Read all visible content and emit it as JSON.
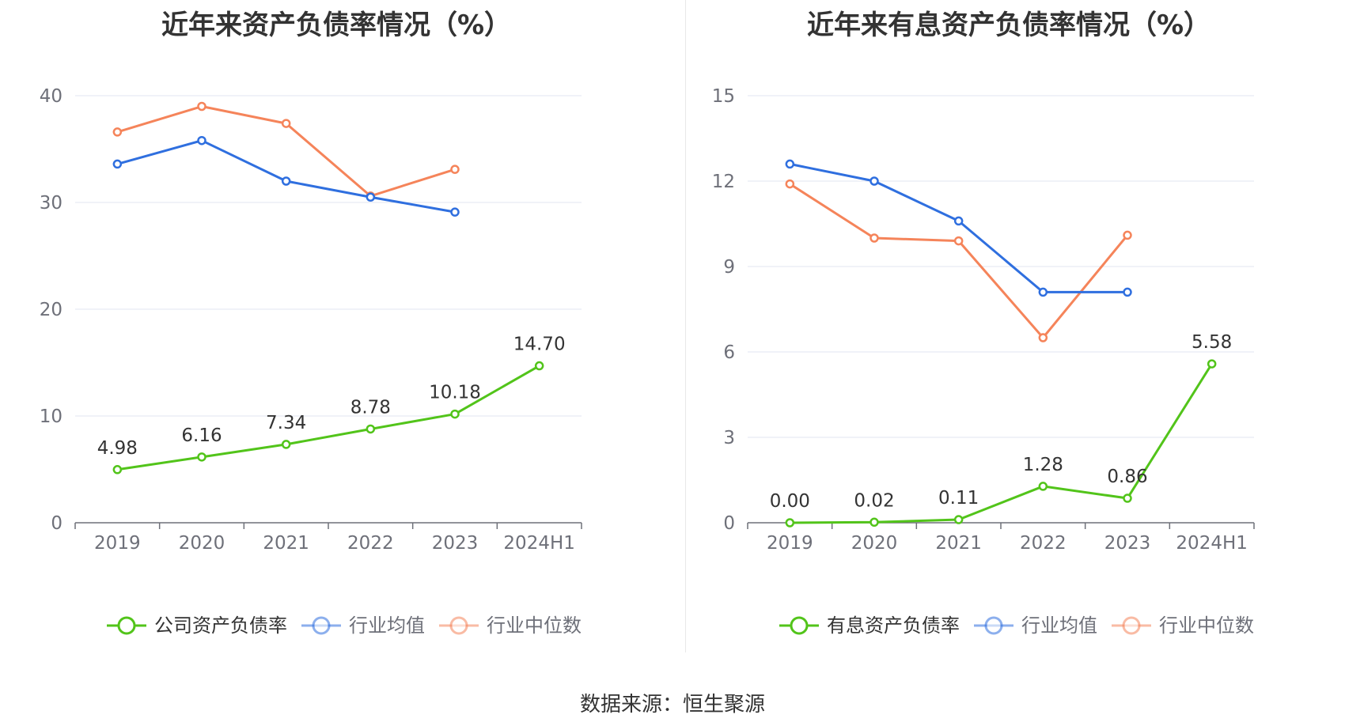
{
  "colors": {
    "company": "#52c41a",
    "industry_avg": "#2f6fdf",
    "industry_median": "#f5845a",
    "grid": "#e0e6f1",
    "axis": "#6e7079"
  },
  "source": "数据来源：恒生聚源",
  "chart_data": [
    {
      "type": "line",
      "title": "近年来资产负债率情况（%）",
      "categories": [
        "2019",
        "2020",
        "2021",
        "2022",
        "2023",
        "2024H1"
      ],
      "ylim": [
        0,
        40
      ],
      "yticks": [
        0,
        10,
        20,
        30,
        40
      ],
      "grid": true,
      "legend_position": "bottom",
      "series": [
        {
          "name": "公司资产负债率",
          "key": "company",
          "values": [
            4.98,
            6.16,
            7.34,
            8.78,
            10.18,
            14.7
          ],
          "labels": [
            "4.98",
            "6.16",
            "7.34",
            "8.78",
            "10.18",
            "14.70"
          ]
        },
        {
          "name": "行业均值",
          "key": "industry_avg",
          "values": [
            33.6,
            35.8,
            32.0,
            30.5,
            29.1,
            null
          ]
        },
        {
          "name": "行业中位数",
          "key": "industry_median",
          "values": [
            36.6,
            39.0,
            37.4,
            30.6,
            33.1,
            null
          ]
        }
      ]
    },
    {
      "type": "line",
      "title": "近年来有息资产负债率情况（%）",
      "categories": [
        "2019",
        "2020",
        "2021",
        "2022",
        "2023",
        "2024H1"
      ],
      "ylim": [
        0,
        15
      ],
      "yticks": [
        0,
        3,
        6,
        9,
        12,
        15
      ],
      "grid": true,
      "legend_position": "bottom",
      "series": [
        {
          "name": "有息资产负债率",
          "key": "company",
          "values": [
            0.0,
            0.02,
            0.11,
            1.28,
            0.86,
            5.58
          ],
          "labels": [
            "0.00",
            "0.02",
            "0.11",
            "1.28",
            "0.86",
            "5.58"
          ]
        },
        {
          "name": "行业均值",
          "key": "industry_avg",
          "values": [
            12.6,
            12.0,
            10.6,
            8.1,
            8.1,
            null
          ]
        },
        {
          "name": "行业中位数",
          "key": "industry_median",
          "values": [
            11.9,
            10.0,
            9.9,
            6.5,
            10.1,
            null
          ]
        }
      ]
    }
  ]
}
